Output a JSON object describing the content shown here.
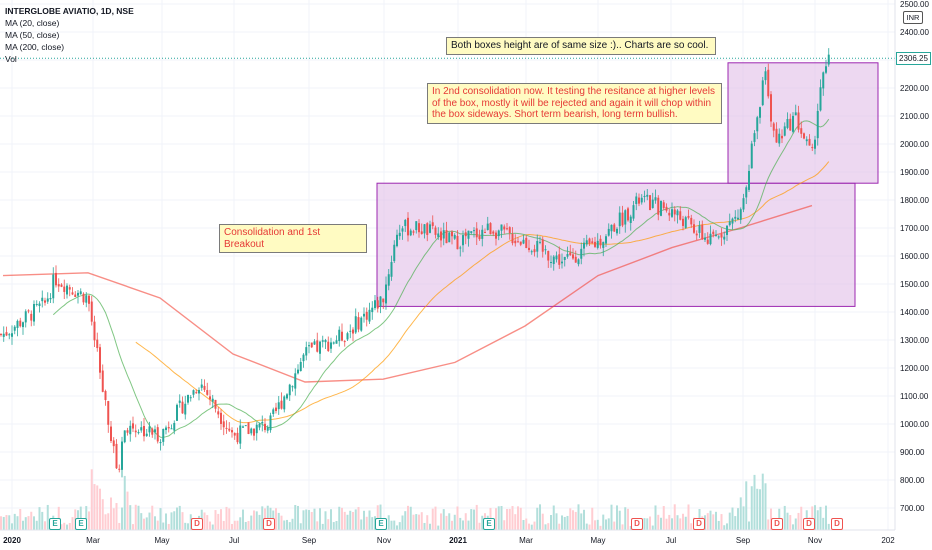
{
  "legend": {
    "symbol": "INTERGLOBE AVIATIO, 1D, NSE",
    "ma20": "MA (20, close)",
    "ma50": "MA (50, close)",
    "ma200": "MA (200, close)",
    "vol": "Vol"
  },
  "currency": "INR",
  "last_price": "2306.25",
  "notes": {
    "top": "Both boxes height are of same size :).. Charts are so cool.",
    "box1": "Consolidation and 1st Breakout",
    "box2": "In 2nd consolidation now. It testing the resitance at higher levels of the box, mostly it will be rejected and again it will chop within the box sideways. Short term bearish, long term bullish."
  },
  "colors": {
    "up": "#26a69a",
    "down": "#ef5350",
    "ma20": "#4caf50",
    "ma50": "#ff9800",
    "ma200": "#f44336",
    "box_fill": "#e1bee7",
    "box_stroke": "#9c27b0",
    "note_bg": "#fffbc2"
  },
  "chart_data": {
    "type": "candlestick",
    "title": "INTERGLOBE AVIATIO, 1D, NSE",
    "y_ticks": [
      700,
      800,
      900,
      1000,
      1100,
      1200,
      1300,
      1400,
      1500,
      1600,
      1700,
      1800,
      1900,
      2000,
      2100,
      2200,
      2300,
      2400,
      2500
    ],
    "y_tick_labels": [
      "700.00",
      "800.00",
      "900.00",
      "1000.00",
      "1100.00",
      "1200.00",
      "1300.00",
      "1400.00",
      "1500.00",
      "1600.00",
      "1700.00",
      "1800.00",
      "1900.00",
      "2000.00",
      "2100.00",
      "2200.00",
      "2300.00",
      "2400.00",
      "2500.00"
    ],
    "ylim": [
      640,
      2530
    ],
    "x_ticks": [
      "2020",
      "Mar",
      "May",
      "Jul",
      "Sep",
      "Nov",
      "2021",
      "Mar",
      "May",
      "Jul",
      "Sep",
      "Nov",
      "202"
    ],
    "events": [
      "E",
      "E",
      "D",
      "D",
      "E",
      "E",
      "D",
      "D",
      "D",
      "D",
      "D"
    ],
    "price_path": [
      [
        "2020-01",
        1320
      ],
      [
        "2020-02",
        1430
      ],
      [
        "2020-02b",
        1520
      ],
      [
        "2020-03",
        1450
      ],
      [
        "2020-03b",
        1000
      ],
      [
        "2020-03c",
        820
      ],
      [
        "2020-04",
        1000
      ],
      [
        "2020-05",
        960
      ],
      [
        "2020-06",
        1150
      ],
      [
        "2020-07",
        960
      ],
      [
        "2020-08",
        1000
      ],
      [
        "2020-09",
        1250
      ],
      [
        "2020-10",
        1320
      ],
      [
        "2020-11",
        1450
      ],
      [
        "2020-11b",
        1700
      ],
      [
        "2020-12",
        1700
      ],
      [
        "2021-01",
        1650
      ],
      [
        "2021-02",
        1700
      ],
      [
        "2021-03",
        1650
      ],
      [
        "2021-04",
        1580
      ],
      [
        "2021-05",
        1650
      ],
      [
        "2021-06",
        1800
      ],
      [
        "2021-07",
        1760
      ],
      [
        "2021-08",
        1650
      ],
      [
        "2021-09",
        1750
      ],
      [
        "2021-09b",
        2250
      ],
      [
        "2021-10",
        2000
      ],
      [
        "2021-10b",
        2100
      ],
      [
        "2021-11",
        1950
      ],
      [
        "2021-11b",
        2200
      ],
      [
        "2021-11c",
        2306
      ]
    ],
    "ma200_path": [
      [
        "2020-01",
        1530
      ],
      [
        "2020-03",
        1540
      ],
      [
        "2020-05",
        1450
      ],
      [
        "2020-07",
        1250
      ],
      [
        "2020-09",
        1150
      ],
      [
        "2020-11",
        1160
      ],
      [
        "2021-01",
        1220
      ],
      [
        "2021-03",
        1350
      ],
      [
        "2021-05",
        1530
      ],
      [
        "2021-07",
        1630
      ],
      [
        "2021-09",
        1700
      ],
      [
        "2021-11",
        1780
      ]
    ],
    "boxes": [
      {
        "from": "2020-11",
        "to": "2021-10",
        "low": 1420,
        "high": 1860
      },
      {
        "from": "2021-09",
        "to": "2021-12",
        "low": 1860,
        "high": 2290
      }
    ],
    "last_value": 2306.25
  }
}
